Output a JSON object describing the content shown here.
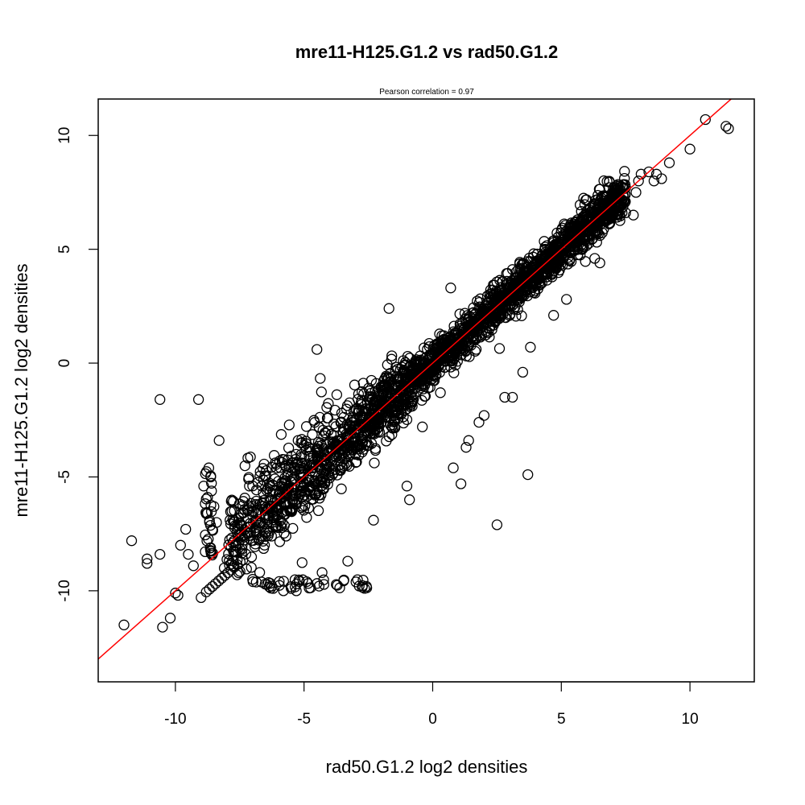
{
  "chart_data": {
    "type": "scatter",
    "title": "mre11-H125.G1.2 vs rad50.G1.2",
    "subtitle": "Pearson correlation =  0.97",
    "xlabel": "rad50.G1.2 log2 densities",
    "ylabel": "mre11-H125.G1.2 log2 densities",
    "xlim": [
      -13,
      12.5
    ],
    "ylim": [
      -14,
      11.6
    ],
    "xticks": [
      -10,
      -5,
      0,
      5,
      10
    ],
    "yticks": [
      -10,
      -5,
      0,
      5,
      10
    ],
    "xtick_labels": [
      "-10",
      "-5",
      "0",
      "5",
      "10"
    ],
    "ytick_labels": [
      "-10",
      "-5",
      "0",
      "5",
      "10"
    ],
    "grid": false,
    "marker": "open-circle",
    "colors": {
      "points": "#000000",
      "fit_line": "#ff0000"
    },
    "fit_line": {
      "slope": 1.0,
      "intercept": 0.0
    },
    "pearson_r": 0.97,
    "cluster": {
      "description": "dense band of points along y=x",
      "x_range": [
        -8,
        7.5
      ],
      "spread": 0.55
    },
    "outliers": [
      [
        -12.0,
        -11.5
      ],
      [
        -11.7,
        -7.8
      ],
      [
        -11.1,
        -8.6
      ],
      [
        -11.1,
        -8.8
      ],
      [
        -10.6,
        -8.4
      ],
      [
        -10.6,
        -1.6
      ],
      [
        -10.5,
        -11.6
      ],
      [
        -10.2,
        -11.2
      ],
      [
        -10.0,
        -10.1
      ],
      [
        -9.9,
        -10.2
      ],
      [
        -9.8,
        -8.0
      ],
      [
        -9.6,
        -7.3
      ],
      [
        -9.5,
        -8.4
      ],
      [
        -9.1,
        -1.6
      ],
      [
        -9.3,
        -8.9
      ],
      [
        -9.0,
        -10.3
      ],
      [
        -8.9,
        -5.4
      ],
      [
        -8.7,
        -4.6
      ],
      [
        -8.5,
        -6.3
      ],
      [
        -8.4,
        -7.0
      ],
      [
        -8.3,
        -3.4
      ],
      [
        -8.1,
        -9.0
      ],
      [
        -7.6,
        -9.3
      ],
      [
        -7.0,
        -9.5
      ],
      [
        -6.2,
        -9.9
      ],
      [
        -5.8,
        -10.0
      ],
      [
        -5.5,
        -9.9
      ],
      [
        -5.3,
        -10.0
      ],
      [
        -4.9,
        -9.6
      ],
      [
        -4.3,
        -9.2
      ],
      [
        -4.5,
        0.6
      ],
      [
        -3.3,
        -8.7
      ],
      [
        -2.3,
        -6.9
      ],
      [
        -1.7,
        2.4
      ],
      [
        -1.0,
        -5.4
      ],
      [
        -0.9,
        -6.0
      ],
      [
        -0.4,
        -2.8
      ],
      [
        0.3,
        -1.3
      ],
      [
        0.7,
        3.3
      ],
      [
        0.8,
        -4.6
      ],
      [
        1.1,
        -5.3
      ],
      [
        1.3,
        -3.7
      ],
      [
        1.4,
        -3.4
      ],
      [
        1.8,
        -2.6
      ],
      [
        2.0,
        -2.3
      ],
      [
        2.5,
        -7.1
      ],
      [
        2.8,
        -1.5
      ],
      [
        3.1,
        -1.5
      ],
      [
        3.5,
        -0.4
      ],
      [
        3.7,
        -4.9
      ],
      [
        3.8,
        0.7
      ],
      [
        4.7,
        2.1
      ],
      [
        5.2,
        2.8
      ],
      [
        5.5,
        5.0
      ],
      [
        6.3,
        4.6
      ],
      [
        6.0,
        6.7
      ],
      [
        6.5,
        4.4
      ],
      [
        7.2,
        6.8
      ],
      [
        7.5,
        6.6
      ],
      [
        7.8,
        6.5
      ],
      [
        7.5,
        7.7
      ],
      [
        7.9,
        7.5
      ],
      [
        8.0,
        8.0
      ],
      [
        8.1,
        8.3
      ],
      [
        8.4,
        8.4
      ],
      [
        8.6,
        8.0
      ],
      [
        8.7,
        8.3
      ],
      [
        8.9,
        8.1
      ],
      [
        9.2,
        8.8
      ],
      [
        10.0,
        9.4
      ],
      [
        10.6,
        10.7
      ],
      [
        11.4,
        10.4
      ],
      [
        11.5,
        10.3
      ]
    ]
  }
}
